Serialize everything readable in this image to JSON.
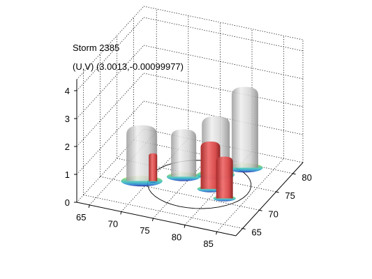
{
  "figure": {
    "title": "Storm 2385",
    "subtitle": "(U,V) (3.0013,-0.00099977)"
  },
  "chart_data": {
    "type": "surface3d",
    "title": "Storm 2385",
    "subtitle": "(U,V) (3.0013,-0.00099977)",
    "x_axis": {
      "ticks": [
        65,
        70,
        75,
        80,
        85
      ],
      "range": [
        63,
        88
      ]
    },
    "y_axis": {
      "ticks": [
        65,
        70,
        75,
        80
      ],
      "range": [
        63,
        83
      ]
    },
    "z_axis": {
      "ticks": [
        0,
        1,
        2,
        3,
        4
      ],
      "range": [
        0,
        4.4
      ]
    },
    "grid": true,
    "series": [
      {
        "color": "#d9d9d9",
        "values": [
          {
            "x": 69,
            "y": 71,
            "height": 2.0
          },
          {
            "x": 74,
            "y": 74,
            "height": 1.7
          },
          {
            "x": 78,
            "y": 76,
            "height": 2.1
          },
          {
            "x": 81,
            "y": 79,
            "height": 2.9
          }
        ]
      },
      {
        "color": "#d94a4a",
        "values": [
          {
            "x": 70.5,
            "y": 71.5,
            "height": 1.0
          },
          {
            "x": 79,
            "y": 72.5,
            "height": 1.7
          },
          {
            "x": 82,
            "y": 71,
            "height": 1.5
          }
        ]
      }
    ],
    "colors": {
      "axes": "#000000",
      "grid": "#000000",
      "gray_isosurface": "#d9d9d9",
      "red_isosurface": "#d94a4a",
      "base_colormap": [
        "#1a1a8c",
        "#2a7fd4",
        "#3cc0c0",
        "#7ad07a",
        "#e0e060"
      ]
    }
  }
}
